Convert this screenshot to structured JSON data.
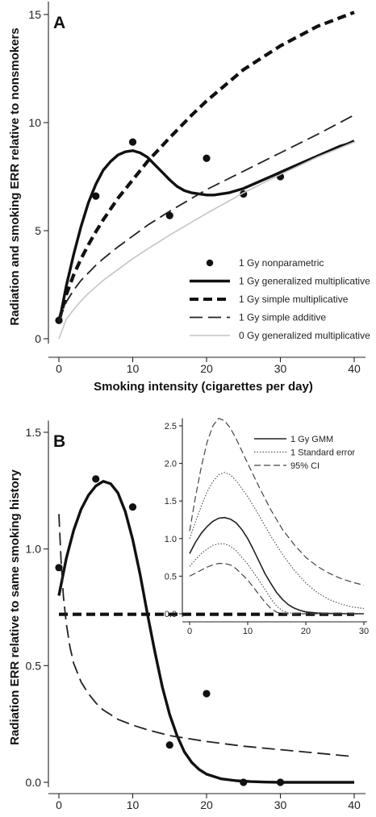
{
  "chart_data": [
    {
      "panel": "A",
      "type": "line",
      "xlabel": "Smoking intensity (cigarettes per day)",
      "ylabel": "Radiation and smoking ERR relative to nonsmokers",
      "xlim": [
        -1,
        41
      ],
      "ylim": [
        -0.5,
        15.6
      ],
      "xticks": [
        0,
        10,
        20,
        30,
        40
      ],
      "yticks": [
        0,
        5,
        10,
        15
      ],
      "legend_position": "bottom-right",
      "series": [
        {
          "name": "1 Gy nonparametric",
          "style": "points",
          "x": [
            0,
            5,
            10,
            15,
            20,
            25,
            30
          ],
          "y": [
            0.85,
            6.6,
            9.1,
            5.7,
            8.35,
            6.7,
            7.5
          ]
        },
        {
          "name": "1 Gy generalized multiplicative",
          "style": "thick-solid",
          "x": [
            0,
            1,
            2,
            3,
            4,
            5,
            6,
            7,
            8,
            9,
            10,
            11,
            12,
            13,
            14,
            15,
            16,
            17,
            18,
            19,
            20,
            21,
            22,
            23,
            24,
            25,
            26,
            27,
            28,
            29,
            30,
            31,
            32,
            33,
            34,
            35,
            36,
            37,
            38,
            39,
            40
          ],
          "y": [
            0.7,
            2.45,
            3.9,
            5.2,
            6.3,
            7.15,
            7.8,
            8.2,
            8.5,
            8.65,
            8.7,
            8.6,
            8.4,
            8.05,
            7.7,
            7.35,
            7.05,
            6.85,
            6.75,
            6.7,
            6.65,
            6.65,
            6.7,
            6.75,
            6.85,
            6.95,
            7.1,
            7.25,
            7.4,
            7.55,
            7.7,
            7.85,
            8.0,
            8.15,
            8.3,
            8.45,
            8.6,
            8.75,
            8.9,
            9.0,
            9.15
          ]
        },
        {
          "name": "1 Gy simple multiplicative",
          "style": "thick-dash",
          "x": [
            0,
            1,
            2,
            3,
            4,
            5,
            6,
            8,
            10,
            12,
            15,
            18,
            20,
            25,
            30,
            35,
            40
          ],
          "y": [
            0.8,
            2.05,
            2.95,
            3.7,
            4.35,
            4.95,
            5.5,
            6.5,
            7.35,
            8.2,
            9.3,
            10.35,
            11.0,
            12.45,
            13.55,
            14.45,
            15.1
          ]
        },
        {
          "name": "1 Gy simple additive",
          "style": "long-dash",
          "x": [
            0,
            1,
            2,
            3,
            4,
            5,
            6,
            8,
            10,
            12,
            15,
            20,
            25,
            30,
            35,
            40
          ],
          "y": [
            0.8,
            1.7,
            2.25,
            2.7,
            3.05,
            3.4,
            3.7,
            4.25,
            4.75,
            5.25,
            5.9,
            6.9,
            7.75,
            8.6,
            9.45,
            10.35
          ]
        },
        {
          "name": "0 Gy generalized multiplicative",
          "style": "thin-gray",
          "x": [
            0,
            1,
            2,
            3,
            4,
            5,
            6,
            8,
            10,
            12,
            15,
            20,
            25,
            30,
            35,
            40
          ],
          "y": [
            0,
            0.9,
            1.35,
            1.75,
            2.1,
            2.4,
            2.7,
            3.2,
            3.7,
            4.15,
            4.8,
            5.8,
            6.75,
            7.6,
            8.4,
            9.1
          ]
        }
      ]
    },
    {
      "panel": "B",
      "type": "line",
      "xlabel": "Smoking intensity (cigarettes per day)",
      "ylabel": "Radiation ERR relative to same smoking history",
      "xlim": [
        -1,
        41
      ],
      "ylim": [
        -0.04,
        1.55
      ],
      "xticks": [
        0,
        10,
        20,
        30,
        40
      ],
      "yticks": [
        0.0,
        0.5,
        1.0,
        1.5
      ],
      "ytick_labels": [
        "0.0",
        "0.5",
        "1.0",
        "1.5"
      ],
      "series": [
        {
          "style": "points",
          "x": [
            0,
            5,
            10,
            15,
            20,
            25,
            30
          ],
          "y": [
            0.92,
            1.3,
            1.18,
            0.16,
            0.38,
            0.0,
            0.0
          ]
        },
        {
          "style": "thick-solid",
          "x": [
            0,
            1,
            2,
            3,
            4,
            5,
            6,
            7,
            8,
            9,
            10,
            11,
            12,
            13,
            14,
            15,
            16,
            17,
            18,
            19,
            20,
            22,
            24,
            26,
            28,
            30,
            35,
            40
          ],
          "y": [
            0.8,
            0.96,
            1.08,
            1.17,
            1.23,
            1.27,
            1.29,
            1.28,
            1.24,
            1.16,
            1.04,
            0.89,
            0.72,
            0.56,
            0.41,
            0.29,
            0.2,
            0.13,
            0.085,
            0.055,
            0.035,
            0.015,
            0.007,
            0.003,
            0.001,
            0.0,
            0.0,
            0.0
          ]
        },
        {
          "style": "thick-dash",
          "x": [
            0,
            40
          ],
          "y": [
            0.72,
            0.72
          ]
        },
        {
          "style": "long-dash",
          "x": [
            0,
            0.3,
            0.6,
            1,
            1.5,
            2,
            3,
            4,
            5,
            6,
            8,
            10,
            12,
            15,
            20,
            25,
            30,
            35,
            40
          ],
          "y": [
            1.15,
            0.95,
            0.8,
            0.68,
            0.58,
            0.51,
            0.43,
            0.38,
            0.34,
            0.31,
            0.27,
            0.245,
            0.225,
            0.2,
            0.175,
            0.155,
            0.14,
            0.125,
            0.11
          ]
        }
      ]
    },
    {
      "panel": "B-inset",
      "type": "line",
      "xlim": [
        -1,
        30
      ],
      "ylim": [
        -0.08,
        2.6
      ],
      "xticks": [
        0,
        10,
        20,
        30
      ],
      "yticks": [
        0.0,
        0.5,
        1.0,
        1.5,
        2.0,
        2.5
      ],
      "ytick_labels": [
        "0.0",
        "0.5",
        "1.0",
        "1.5",
        "2.0",
        "2.5"
      ],
      "legend_position": "top-right",
      "series": [
        {
          "name": "1 Gy GMM",
          "style": "solid",
          "x": [
            0,
            1,
            2,
            3,
            4,
            5,
            6,
            7,
            8,
            9,
            10,
            11,
            12,
            13,
            14,
            15,
            16,
            17,
            18,
            19,
            20,
            22,
            24,
            26,
            28,
            30
          ],
          "y": [
            0.8,
            0.95,
            1.07,
            1.16,
            1.23,
            1.27,
            1.28,
            1.26,
            1.21,
            1.12,
            1.0,
            0.85,
            0.69,
            0.53,
            0.4,
            0.28,
            0.19,
            0.12,
            0.075,
            0.045,
            0.025,
            0.01,
            0.004,
            0.002,
            0.001,
            0.0
          ]
        },
        {
          "name": "1 Standard error",
          "style": "dotted",
          "x": [
            0,
            1,
            2,
            3,
            4,
            5,
            6,
            7,
            8,
            10,
            12,
            14,
            16,
            18,
            20,
            22,
            24,
            26,
            28,
            30
          ],
          "y": [
            1.0,
            1.22,
            1.43,
            1.62,
            1.76,
            1.85,
            1.88,
            1.85,
            1.77,
            1.56,
            1.3,
            1.03,
            0.79,
            0.58,
            0.41,
            0.28,
            0.19,
            0.13,
            0.09,
            0.07
          ]
        },
        {
          "style": "dotted",
          "x": [
            0,
            1,
            2,
            3,
            4,
            5,
            6,
            7,
            8,
            10,
            12,
            13,
            14,
            15,
            16,
            17,
            18,
            20,
            22,
            25,
            30
          ],
          "y": [
            0.63,
            0.72,
            0.8,
            0.86,
            0.91,
            0.93,
            0.93,
            0.9,
            0.84,
            0.66,
            0.44,
            0.32,
            0.2,
            0.1,
            0.04,
            0.015,
            0.005,
            0.0,
            0.0,
            0.0,
            0.0
          ]
        },
        {
          "name": "95% CI",
          "style": "long-dash",
          "x": [
            0,
            1,
            2,
            3,
            4,
            5,
            6,
            7,
            8,
            10,
            12,
            14,
            16,
            18,
            20,
            22,
            24,
            26,
            28,
            30
          ],
          "y": [
            1.1,
            1.55,
            1.95,
            2.28,
            2.5,
            2.6,
            2.57,
            2.47,
            2.33,
            2.0,
            1.68,
            1.38,
            1.12,
            0.92,
            0.75,
            0.63,
            0.54,
            0.47,
            0.42,
            0.38
          ]
        },
        {
          "style": "long-dash",
          "x": [
            0,
            1,
            2,
            3,
            4,
            5,
            6,
            7,
            8,
            10,
            12,
            13,
            14,
            15,
            16,
            17,
            18,
            20,
            22,
            25,
            30
          ],
          "y": [
            0.5,
            0.54,
            0.58,
            0.62,
            0.65,
            0.67,
            0.67,
            0.65,
            0.6,
            0.45,
            0.25,
            0.15,
            0.07,
            0.02,
            0.0,
            0.0,
            0.0,
            0.0,
            0.0,
            0.0,
            0.0
          ]
        }
      ]
    }
  ]
}
